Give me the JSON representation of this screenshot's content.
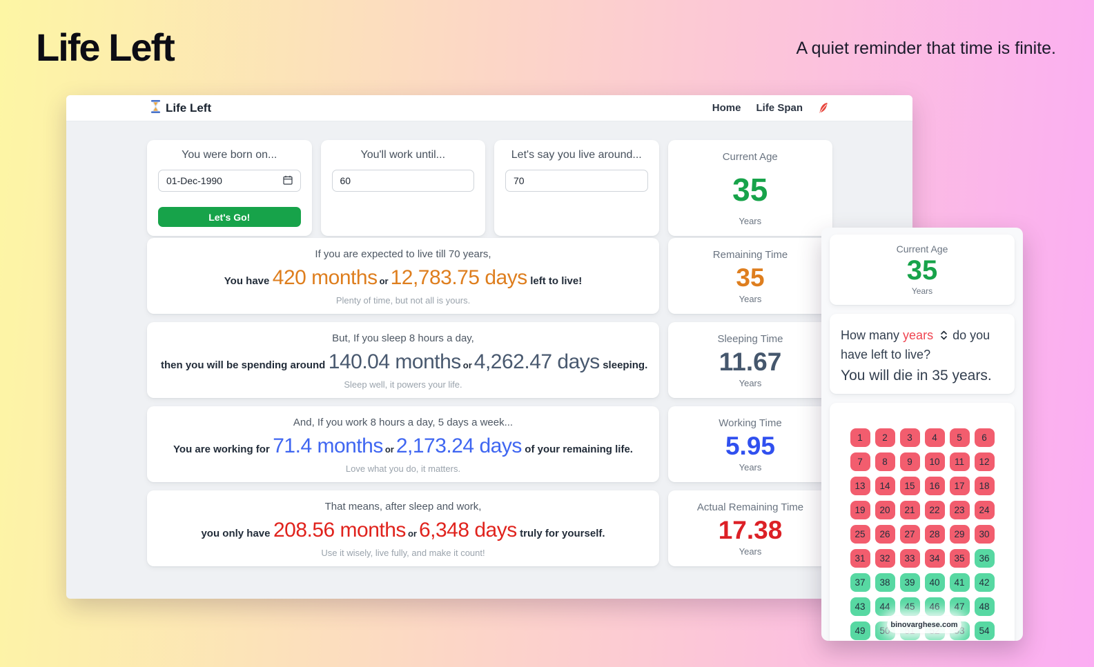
{
  "page": {
    "title": "Life Left",
    "tagline": "A quiet reminder that time is finite.",
    "background_from": "#fdf6a4",
    "background_to": "#fbadf3"
  },
  "window": {
    "brand": "Life Left",
    "nav": {
      "home": "Home",
      "life_span": "Life Span",
      "icon_color": "#e8453c"
    }
  },
  "inputs": {
    "birth": {
      "title": "You were born on...",
      "value": "01-Dec-1990",
      "button": "Let's Go!",
      "button_color": "#17a34a"
    },
    "work": {
      "title": "You'll work until...",
      "value": "60"
    },
    "live": {
      "title": "Let's say you live around...",
      "value": "70"
    }
  },
  "current_age": {
    "title": "Current Age",
    "value": "35",
    "unit": "Years",
    "color": "#17a34a"
  },
  "rows": [
    {
      "line1": "If you are expected to live till 70 years,",
      "pre": "You have",
      "months": "420 months",
      "or": "or",
      "days": "12,783.75 days",
      "post": "left to live!",
      "footer": "Plenty of time, but not all is yours.",
      "accent": "#de7e1e"
    },
    {
      "line1": "But, If you sleep 8 hours a day,",
      "pre": "then you will be spending around",
      "months": "140.04 months",
      "or": "or",
      "days": "4,262.47 days",
      "post": "sleeping.",
      "footer": "Sleep well, it powers your life.",
      "accent": "#49596f"
    },
    {
      "line1": "And, If you work 8 hours a day, 5 days a week...",
      "pre": "You are working for",
      "months": "71.4 months",
      "or": "or",
      "days": "2,173.24 days",
      "post": "of your remaining life.",
      "footer": "Love what you do, it matters.",
      "accent": "#3f66f1"
    },
    {
      "line1": "That means, after sleep and work,",
      "pre": "you only have",
      "months": "208.56 months",
      "or": "or",
      "days": "6,348 days",
      "post": "truly for yourself.",
      "footer": "Use it wisely, live fully, and make it count!",
      "accent": "#e0231d"
    }
  ],
  "stats": [
    {
      "title": "Remaining Time",
      "value": "35",
      "unit": "Years",
      "accent": "#de7e1e"
    },
    {
      "title": "Sleeping Time",
      "value": "11.67",
      "unit": "Years",
      "accent": "#45576d"
    },
    {
      "title": "Working Time",
      "value": "5.95",
      "unit": "Years",
      "accent": "#3050ef"
    },
    {
      "title": "Actual Remaining Time",
      "value": "17.38",
      "unit": "Years",
      "accent": "#dc2026"
    }
  ],
  "overlay": {
    "current_age": {
      "title": "Current Age",
      "value": "35",
      "unit": "Years",
      "color": "#17a34a"
    },
    "question": {
      "prefix": "How many",
      "unit": "years",
      "unit_color": "#ef4450",
      "suffix": "do you have left to live?",
      "answer": "You will die in 35 years."
    },
    "grid": {
      "first": 1,
      "last": 54,
      "past_through": 35,
      "columns": 6,
      "past_color": "#f25d6e",
      "future_color": "#57d8a2"
    },
    "watermark": "binovarghese.com"
  }
}
